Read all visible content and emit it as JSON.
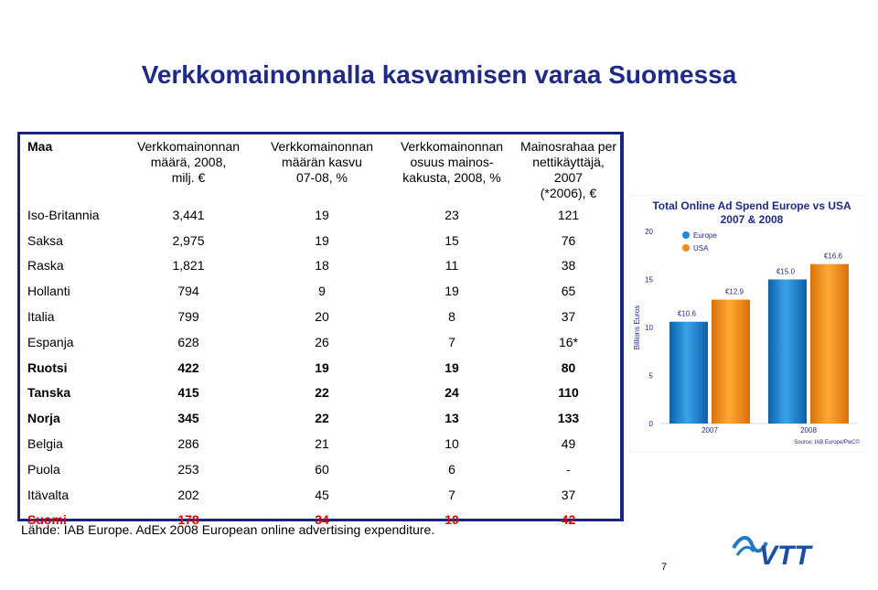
{
  "title": "Verkkomainonnalla kasvamisen varaa Suomessa",
  "table": {
    "headers": [
      {
        "lines": [
          "Maa"
        ]
      },
      {
        "lines": [
          "Verkkomainonnan",
          "määrä, 2008,",
          "milj. €"
        ]
      },
      {
        "lines": [
          "Verkkomainonnan",
          "määrän kasvu",
          "07-08, %"
        ]
      },
      {
        "lines": [
          "Verkkomainonnan",
          "osuus mainos-",
          "kakusta, 2008, %"
        ]
      },
      {
        "lines": [
          "Mainosrahaa per",
          "nettikäyttäjä, 2007",
          "(*2006), €"
        ]
      }
    ],
    "rows": [
      {
        "style": "normal",
        "cells": [
          "Iso-Britannia",
          "3,441",
          "19",
          "23",
          "121"
        ]
      },
      {
        "style": "normal",
        "cells": [
          "Saksa",
          "2,975",
          "19",
          "15",
          "76"
        ]
      },
      {
        "style": "normal",
        "cells": [
          "Raska",
          "1,821",
          "18",
          "11",
          "38"
        ]
      },
      {
        "style": "normal",
        "cells": [
          "Hollanti",
          "794",
          "9",
          "19",
          "65"
        ]
      },
      {
        "style": "normal",
        "cells": [
          "Italia",
          "799",
          "20",
          "8",
          "37"
        ]
      },
      {
        "style": "normal",
        "cells": [
          "Espanja",
          "628",
          "26",
          "7",
          "16*"
        ]
      },
      {
        "style": "bold",
        "cells": [
          "Ruotsi",
          "422",
          "19",
          "19",
          "80"
        ]
      },
      {
        "style": "bold",
        "cells": [
          "Tanska",
          "415",
          "22",
          "24",
          "110"
        ]
      },
      {
        "style": "bold",
        "cells": [
          "Norja",
          "345",
          "22",
          "13",
          "133"
        ]
      },
      {
        "style": "normal",
        "cells": [
          "Belgia",
          "286",
          "21",
          "10",
          "49"
        ]
      },
      {
        "style": "normal",
        "cells": [
          "Puola",
          "253",
          "60",
          "6",
          "-"
        ]
      },
      {
        "style": "normal",
        "cells": [
          "Itävalta",
          "202",
          "45",
          "7",
          "37"
        ]
      },
      {
        "style": "red",
        "cells": [
          "Suomi",
          "178",
          "34",
          "10",
          "42"
        ]
      }
    ]
  },
  "source": "Lähde: IAB Europe. AdEx 2008 European online advertising expenditure.",
  "page_number": "7",
  "logo_text": "VTT",
  "colors": {
    "title": "#1f2a86",
    "table_border": "#1a237e",
    "highlight": "#e00000",
    "chart_title": "#1f2a86",
    "europe": "#1e88d8",
    "usa": "#f08c1e"
  },
  "chart_data": {
    "type": "bar",
    "title": [
      "Total Online Ad Spend Europe vs USA",
      "2007 & 2008"
    ],
    "ylabel": "Billions Euros",
    "categories": [
      "2007",
      "2008"
    ],
    "series": [
      {
        "name": "Europe",
        "values": [
          10.6,
          15.0
        ],
        "labels": [
          "€10.6",
          "€15.0"
        ]
      },
      {
        "name": "USA",
        "values": [
          12.9,
          16.6
        ],
        "labels": [
          "€12.9",
          "€16.6"
        ]
      }
    ],
    "ylim": [
      0,
      20
    ],
    "yticks": [
      "0",
      "5",
      "10",
      "15",
      "20"
    ],
    "legend": "top-left",
    "source": "Source: IAB Europe/PwC©"
  }
}
